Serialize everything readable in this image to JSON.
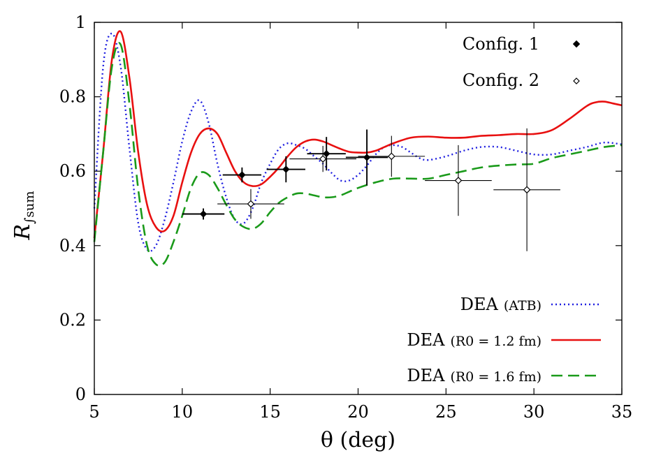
{
  "chart_data": {
    "type": "scatter",
    "xlabel": "θ (deg)",
    "ylabel": "R∫sum",
    "ylabel_main": "R",
    "ylabel_sub": "∫sum",
    "xlim": [
      5,
      35
    ],
    "ylim": [
      0,
      1
    ],
    "xticks": [
      5,
      10,
      15,
      20,
      25,
      30,
      35
    ],
    "yticks": [
      0,
      0.2,
      0.4,
      0.6,
      0.8,
      1
    ],
    "ytick_labels": [
      "0",
      "0.2",
      "0.4",
      "0.6",
      "0.8",
      "1"
    ],
    "legend_position": "top-right (markers) and bottom-right (curves)",
    "grid": false,
    "series": [
      {
        "name": "Config. 1",
        "kind": "points",
        "marker": "filled-diamond",
        "color": "#000000",
        "points": [
          {
            "x": 11.2,
            "y": 0.485,
            "xerr": 1.2,
            "yerr": 0.015
          },
          {
            "x": 13.4,
            "y": 0.59,
            "xerr": 1.1,
            "yerr": 0.02
          },
          {
            "x": 15.9,
            "y": 0.605,
            "xerr": 1.1,
            "yerr": 0.035
          },
          {
            "x": 18.2,
            "y": 0.647,
            "xerr": 1.1,
            "yerr": 0.045
          },
          {
            "x": 20.5,
            "y": 0.637,
            "xerr": 1.2,
            "yerr": 0.075
          }
        ]
      },
      {
        "name": "Config. 2",
        "kind": "points",
        "marker": "open-diamond",
        "color": "#000000",
        "points": [
          {
            "x": 13.9,
            "y": 0.512,
            "xerr": 1.9,
            "yerr": 0.04
          },
          {
            "x": 18.0,
            "y": 0.633,
            "xerr": 1.9,
            "yerr": 0.035
          },
          {
            "x": 21.9,
            "y": 0.64,
            "xerr": 1.9,
            "yerr": 0.055
          },
          {
            "x": 25.7,
            "y": 0.575,
            "xerr": 1.9,
            "yerr": 0.095
          },
          {
            "x": 29.6,
            "y": 0.55,
            "xerr": 1.9,
            "yerr": 0.165
          }
        ]
      },
      {
        "name": "DEA (ATB)",
        "name_main": "DEA",
        "name_detail": "(ATB)",
        "kind": "line",
        "style": "dotted",
        "color": "#1f1fe0",
        "x": [
          5,
          5.5,
          6,
          6.5,
          7,
          7.5,
          8,
          8.5,
          9,
          9.5,
          10,
          10.5,
          11,
          11.5,
          12,
          12.5,
          13,
          13.5,
          14,
          14.5,
          15,
          15.5,
          16,
          16.5,
          17,
          17.5,
          18,
          18.5,
          19,
          19.5,
          20,
          20.5,
          21,
          21.5,
          22,
          22.5,
          23,
          23.5,
          24,
          25,
          26,
          27,
          28,
          29,
          30,
          31,
          32,
          33,
          34,
          35
        ],
        "y": [
          0.5,
          0.88,
          0.97,
          0.88,
          0.66,
          0.46,
          0.39,
          0.4,
          0.47,
          0.57,
          0.68,
          0.76,
          0.79,
          0.73,
          0.62,
          0.53,
          0.47,
          0.46,
          0.5,
          0.57,
          0.62,
          0.66,
          0.675,
          0.67,
          0.66,
          0.64,
          0.62,
          0.595,
          0.575,
          0.575,
          0.59,
          0.615,
          0.645,
          0.665,
          0.67,
          0.665,
          0.65,
          0.635,
          0.63,
          0.64,
          0.655,
          0.665,
          0.665,
          0.655,
          0.645,
          0.645,
          0.655,
          0.665,
          0.677,
          0.672
        ]
      },
      {
        "name": "DEA (R0 = 1.2 fm)",
        "name_main": "DEA",
        "name_detail": "(R0 = 1.2 fm)",
        "kind": "line",
        "style": "solid",
        "color": "#e81010",
        "x": [
          5,
          5.5,
          6,
          6.5,
          7,
          7.5,
          8,
          8.5,
          9,
          9.5,
          10,
          10.5,
          11,
          11.5,
          12,
          12.5,
          13,
          13.5,
          14,
          14.5,
          15,
          15.5,
          16,
          16.5,
          17,
          17.5,
          18,
          18.5,
          19,
          19.5,
          20,
          20.5,
          21,
          21.5,
          22,
          23,
          24,
          25,
          26,
          27,
          28,
          29,
          30,
          31,
          32,
          33,
          33.5,
          34,
          34.5,
          35
        ],
        "y": [
          0.42,
          0.65,
          0.9,
          0.975,
          0.85,
          0.65,
          0.51,
          0.45,
          0.44,
          0.48,
          0.57,
          0.65,
          0.7,
          0.715,
          0.7,
          0.65,
          0.6,
          0.57,
          0.56,
          0.565,
          0.585,
          0.61,
          0.64,
          0.665,
          0.68,
          0.685,
          0.68,
          0.67,
          0.66,
          0.652,
          0.65,
          0.65,
          0.655,
          0.665,
          0.675,
          0.69,
          0.693,
          0.69,
          0.69,
          0.695,
          0.697,
          0.7,
          0.7,
          0.71,
          0.74,
          0.775,
          0.785,
          0.787,
          0.782,
          0.777
        ]
      },
      {
        "name": "DEA (R0 = 1.6 fm)",
        "name_main": "DEA",
        "name_detail": "(R0 = 1.6 fm)",
        "kind": "line",
        "style": "dashed",
        "color": "#1a9a1a",
        "x": [
          5,
          5.5,
          6,
          6.5,
          7,
          7.5,
          8,
          8.5,
          9,
          9.5,
          10,
          10.5,
          11,
          11.5,
          12,
          12.5,
          13,
          13.5,
          14,
          14.5,
          15,
          15.5,
          16,
          16.5,
          17,
          17.5,
          18,
          18.5,
          19,
          19.5,
          20,
          21,
          22,
          23,
          24,
          25,
          26,
          27,
          28,
          29,
          30,
          31,
          32,
          33,
          34,
          35
        ],
        "y": [
          0.41,
          0.65,
          0.88,
          0.94,
          0.78,
          0.55,
          0.4,
          0.35,
          0.355,
          0.41,
          0.48,
          0.555,
          0.595,
          0.59,
          0.555,
          0.51,
          0.47,
          0.45,
          0.445,
          0.46,
          0.49,
          0.515,
          0.53,
          0.54,
          0.54,
          0.535,
          0.53,
          0.53,
          0.535,
          0.545,
          0.555,
          0.57,
          0.58,
          0.58,
          0.58,
          0.59,
          0.6,
          0.61,
          0.615,
          0.618,
          0.62,
          0.635,
          0.645,
          0.655,
          0.665,
          0.67
        ]
      }
    ]
  }
}
